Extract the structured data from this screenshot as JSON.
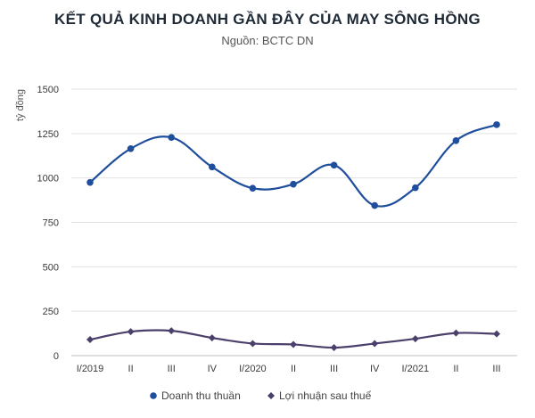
{
  "chart_data": {
    "type": "line",
    "title": "KẾT QUẢ KINH DOANH GẦN ĐÂY CỦA MAY SÔNG HỒNG",
    "subtitle": "Nguồn: BCTC DN",
    "xlabel": "",
    "ylabel": "tỷ đồng",
    "categories": [
      "I/2019",
      "II",
      "III",
      "IV",
      "I/2020",
      "II",
      "III",
      "IV",
      "I/2021",
      "II",
      "III"
    ],
    "ylim": [
      0,
      1500
    ],
    "yticks": [
      0,
      250,
      500,
      750,
      1000,
      1250,
      1500
    ],
    "grid": true,
    "legend_position": "bottom",
    "series": [
      {
        "name": "Doanh thu thuần",
        "color": "#1f4e9c",
        "marker": "circle",
        "values": [
          975,
          1165,
          1228,
          1062,
          942,
          965,
          1072,
          845,
          945,
          1210,
          1300
        ]
      },
      {
        "name": "Lợi nhuận sau thuế",
        "color": "#4b3f6b",
        "marker": "diamond",
        "values": [
          90,
          135,
          140,
          100,
          68,
          63,
          45,
          68,
          95,
          127,
          122
        ]
      }
    ]
  }
}
